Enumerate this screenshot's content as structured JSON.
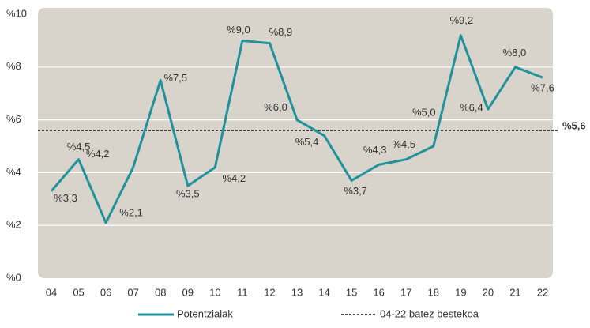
{
  "chart_data": {
    "type": "line",
    "categories": [
      "04",
      "05",
      "06",
      "07",
      "08",
      "09",
      "10",
      "11",
      "12",
      "13",
      "14",
      "15",
      "16",
      "17",
      "18",
      "19",
      "20",
      "21",
      "22"
    ],
    "series": [
      {
        "name": "Potentzialak",
        "color": "#21919b",
        "values": [
          3.3,
          4.5,
          2.1,
          4.2,
          7.5,
          3.5,
          4.2,
          9.0,
          8.9,
          6.0,
          5.4,
          3.7,
          4.3,
          4.5,
          5.0,
          9.2,
          6.4,
          8.0,
          7.6
        ],
        "value_labels": [
          "%3,3",
          "%4,5",
          "%2,1",
          "%4,2",
          "%7,5",
          "%3,5",
          "%4,2",
          "%9,0",
          "%8,9",
          "%6,0",
          "%5,4",
          "%3,7",
          "%4,3",
          "%4,5",
          "%5,0",
          "%9,2",
          "%6,4",
          "%8,0",
          "%7,6"
        ]
      }
    ],
    "average": {
      "name": "04-22 batez bestekoa",
      "value": 5.6,
      "label": "%5,6",
      "color": "#111111"
    },
    "ylim": [
      0,
      10
    ],
    "yticks": [
      {
        "value": 0,
        "label": "%0"
      },
      {
        "value": 2,
        "label": "%2"
      },
      {
        "value": 4,
        "label": "%4"
      },
      {
        "value": 6,
        "label": "%6"
      },
      {
        "value": 8,
        "label": "%8"
      },
      {
        "value": 10,
        "label": "%10"
      }
    ],
    "grid": true,
    "legend": "bottom"
  }
}
